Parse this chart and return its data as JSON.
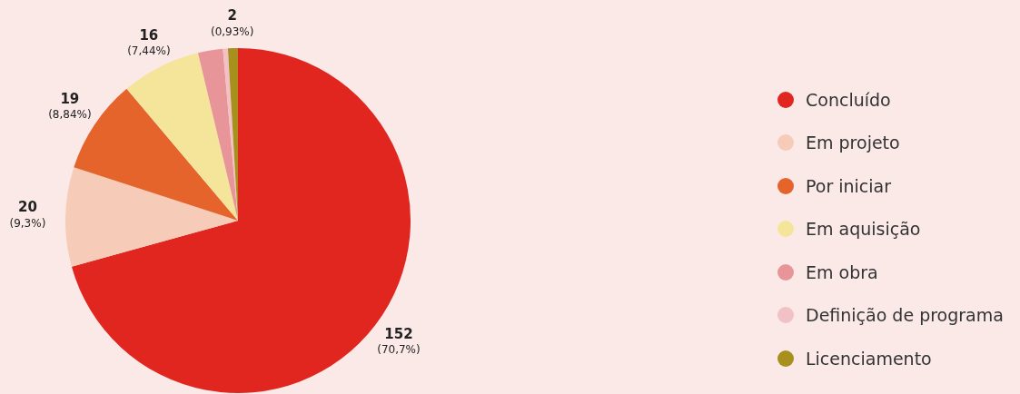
{
  "chart_data": {
    "type": "pie",
    "categories": [
      "Concluído",
      "Em projeto",
      "Por iniciar",
      "Em aquisição",
      "Em obra",
      "Definição de programa",
      "Licenciamento"
    ],
    "values": [
      152,
      20,
      19,
      16,
      5,
      1,
      2
    ],
    "colors": [
      "#e0261f",
      "#f6cbb8",
      "#e4642c",
      "#f5e59b",
      "#e8959a",
      "#f2c1c5",
      "#a8901e"
    ],
    "value_labels": [
      "152\n(70,7%)",
      "20\n(9,3%)",
      "19\n(8,84%)",
      "16\n(7,44%)",
      null,
      null,
      "2\n(0,93%)"
    ],
    "legend": "right"
  }
}
